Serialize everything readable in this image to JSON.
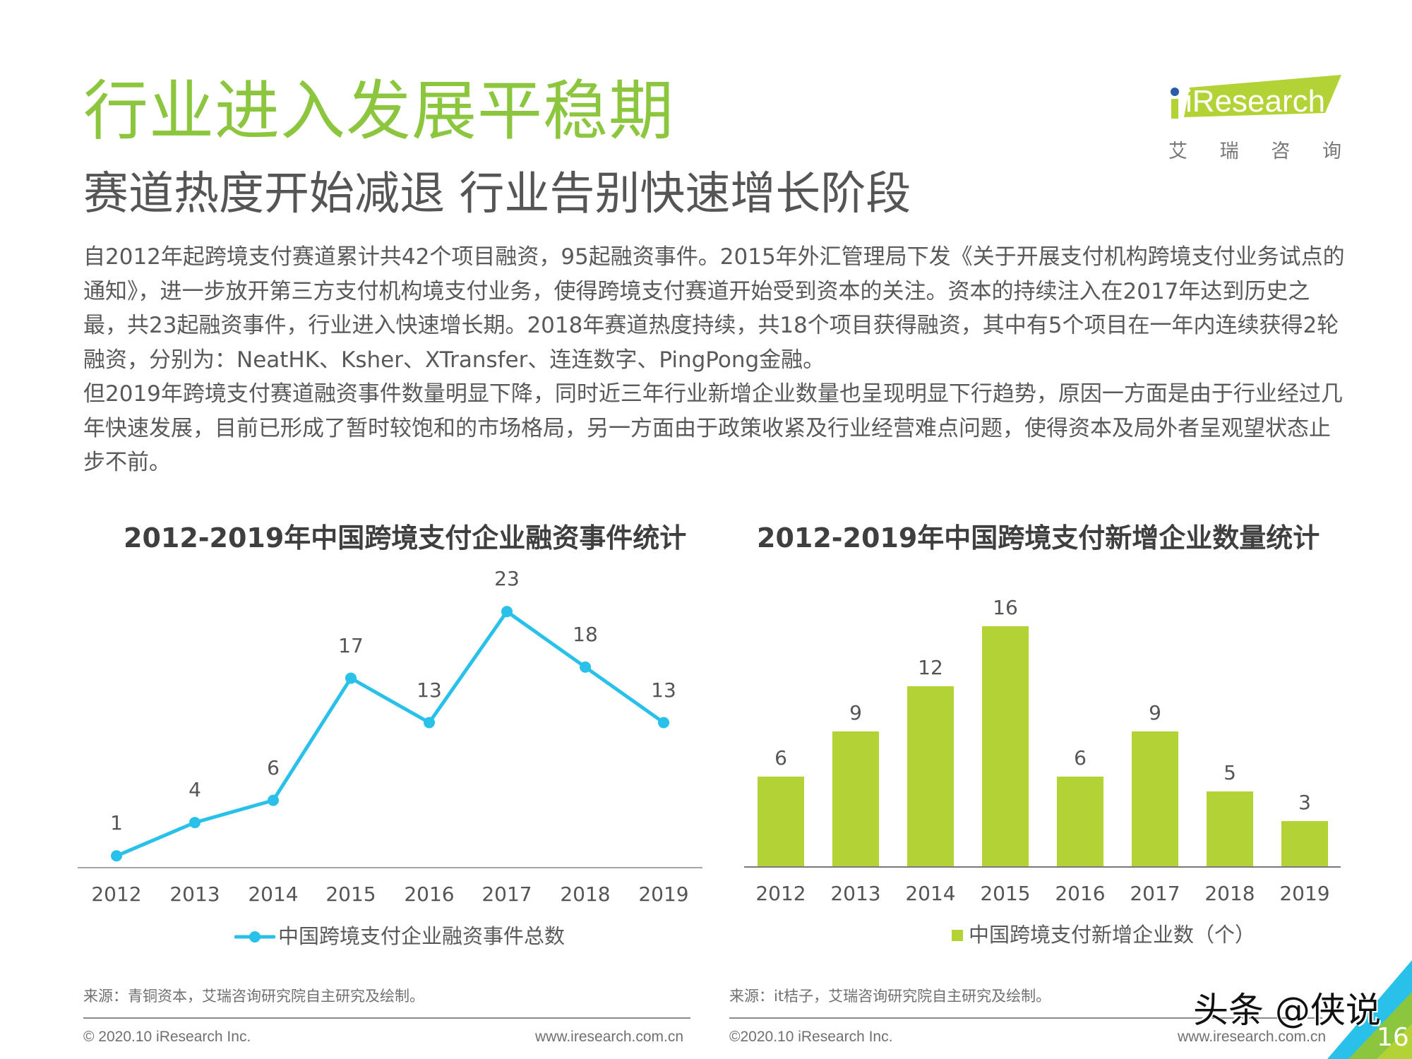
{
  "header": {
    "title": "行业进入发展平稳期",
    "subtitle": "赛道热度开始减退 行业告别快速增长阶段",
    "logo": {
      "brand": "iResearch",
      "cn_chars": [
        "艾",
        "瑞",
        "咨",
        "询"
      ],
      "brand_color": "#b2d235",
      "dot_color": "#2a5caa"
    }
  },
  "body": {
    "paragraphs": [
      "自2012年起跨境支付赛道累计共42个项目融资，95起融资事件。2015年外汇管理局下发《关于开展支付机构跨境支付业务试点的通知》，进一步放开第三方支付机构境支付业务，使得跨境支付赛道开始受到资本的关注。资本的持续注入在2017年达到历史之最，共23起融资事件，行业进入快速增长期。2018年赛道热度持续，共18个项目获得融资，其中有5个项目在一年内连续获得2轮融资，分别为：NeatHK、Ksher、XTransfer、连连数字、PingPong金融。",
      "但2019年跨境支付赛道融资事件数量明显下降，同时近三年行业新增企业数量也呈现明显下行趋势，原因一方面是由于行业经过几年快速发展，目前已形成了暂时较饱和的市场格局，另一方面由于政策收紧及行业经营难点问题，使得资本及局外者呈观望状态止步不前。"
    ]
  },
  "chart_data": [
    {
      "type": "line",
      "title": "2012-2019年中国跨境支付企业融资事件统计",
      "categories": [
        "2012",
        "2013",
        "2014",
        "2015",
        "2016",
        "2017",
        "2018",
        "2019"
      ],
      "series": [
        {
          "name": "中国跨境支付企业融资事件总数",
          "values": [
            1,
            4,
            6,
            17,
            13,
            23,
            18,
            13
          ],
          "color": "#29c0ea"
        }
      ],
      "xlabel": "",
      "ylabel": "",
      "grid": false,
      "legend_position": "bottom",
      "source": "来源：青铜资本，艾瑞咨询研究院自主研究及绘制。"
    },
    {
      "type": "bar",
      "title": "2012-2019年中国跨境支付新增企业数量统计",
      "categories": [
        "2012",
        "2013",
        "2014",
        "2015",
        "2016",
        "2017",
        "2018",
        "2019"
      ],
      "series": [
        {
          "name": "中国跨境支付新增企业数（个）",
          "values": [
            6,
            9,
            12,
            16,
            6,
            9,
            5,
            3
          ],
          "color": "#b2d235"
        }
      ],
      "xlabel": "",
      "ylabel": "",
      "grid": false,
      "legend_position": "bottom",
      "source": "来源：it桔子，艾瑞咨询研究院自主研究及绘制。"
    }
  ],
  "footer": {
    "left_copyright": "© 2020.10 iResearch Inc.",
    "left_url": "www.iresearch.com.cn",
    "right_copyright": "©2020.10 iResearch Inc.",
    "right_url": "www.iresearch.com.cn",
    "page_number": "16",
    "watermark": "头条 @侠说"
  }
}
